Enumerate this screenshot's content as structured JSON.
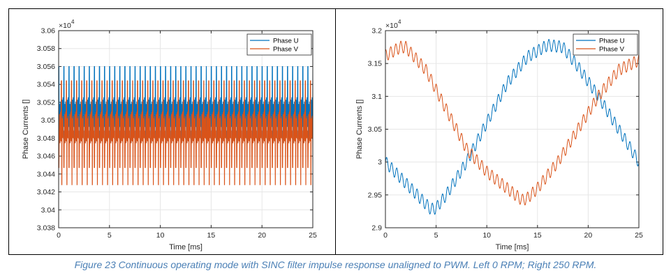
{
  "caption": "Figure 23 Continuous operating mode with SINC filter impulse response unaligned to PWM. Left 0 RPM; Right 250 RPM.",
  "colors": {
    "phase_u": "#0072bd",
    "phase_v": "#d95319",
    "axis": "#262626",
    "grid": "#e6e6e6"
  },
  "chart_data": [
    {
      "type": "line",
      "xlabel": "Time [ms]",
      "ylabel": "Phase Currents []",
      "exponent_label": "×10",
      "exponent_power": "4",
      "xlim": [
        0,
        25
      ],
      "ylim": [
        3.038,
        3.06
      ],
      "xticks": [
        "0",
        "5",
        "10",
        "15",
        "20",
        "25"
      ],
      "yticks": [
        "3.038",
        "3.04",
        "3.042",
        "3.044",
        "3.046",
        "3.048",
        "3.05",
        "3.052",
        "3.054",
        "3.056",
        "3.058",
        "3.06"
      ],
      "grid": true,
      "legend_position": "top-right",
      "series": [
        {
          "name": "Phase U",
          "oscillation": {
            "mean": 3.0508,
            "min": 3.0475,
            "max": 3.056,
            "periods": 50
          }
        },
        {
          "name": "Phase V",
          "oscillation": {
            "mean": 3.0492,
            "min": 3.0428,
            "max": 3.0544,
            "periods": 50
          }
        }
      ]
    },
    {
      "type": "line",
      "xlabel": "Time [ms]",
      "ylabel": "Phase Currents []",
      "exponent_label": "×10",
      "exponent_power": "4",
      "xlim": [
        0,
        25
      ],
      "ylim": [
        2.9,
        3.2
      ],
      "xticks": [
        "0",
        "5",
        "10",
        "15",
        "20",
        "25"
      ],
      "yticks": [
        "2.9",
        "2.95",
        "3",
        "3.05",
        "3.1",
        "3.15",
        "3.2"
      ],
      "grid": true,
      "legend_position": "top-right",
      "series": [
        {
          "name": "Phase U",
          "x": [
            0,
            2.5,
            4.5,
            5,
            6,
            8,
            10,
            12,
            14,
            16,
            17.5,
            19,
            21,
            23,
            25
          ],
          "y": [
            3.0,
            2.96,
            2.928,
            2.93,
            2.95,
            3.0,
            3.06,
            3.12,
            3.16,
            3.178,
            3.175,
            3.145,
            3.1,
            3.05,
            3.0
          ],
          "ripple": 0.009,
          "periods": 50
        },
        {
          "name": "Phase V",
          "x": [
            0,
            1.5,
            2,
            4,
            6,
            8,
            10,
            12,
            13.5,
            14,
            15,
            17,
            19,
            21,
            23,
            25
          ],
          "y": [
            3.162,
            3.175,
            3.175,
            3.14,
            3.08,
            3.02,
            2.985,
            2.96,
            2.942,
            2.945,
            2.96,
            3.0,
            3.05,
            3.1,
            3.14,
            3.155
          ],
          "ripple": 0.009,
          "periods": 50
        }
      ]
    }
  ]
}
